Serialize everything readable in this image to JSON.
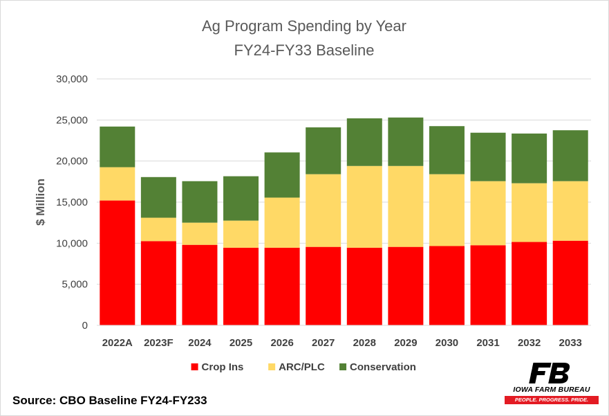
{
  "chart_data": {
    "type": "bar",
    "stacked": true,
    "title": [
      "Ag Program Spending by Year",
      "FY24-FY33 Baseline"
    ],
    "ylabel": "$ Million",
    "xlabel": "",
    "ylim": [
      0,
      30000
    ],
    "yticks": [
      0,
      5000,
      10000,
      15000,
      20000,
      25000,
      30000
    ],
    "ytick_labels": [
      "0",
      "5,000",
      "10,000",
      "15,000",
      "20,000",
      "25,000",
      "30,000"
    ],
    "grid": true,
    "legend_position": "bottom",
    "categories": [
      "2022A",
      "2023F",
      "2024",
      "2025",
      "2026",
      "2027",
      "2028",
      "2029",
      "2030",
      "2031",
      "2032",
      "2033"
    ],
    "series": [
      {
        "name": "Crop Ins",
        "color": "#ff0000",
        "values": [
          15200,
          10250,
          9800,
          9450,
          9450,
          9550,
          9450,
          9550,
          9650,
          9750,
          10150,
          10300
        ]
      },
      {
        "name": "ARC/PLC",
        "color": "#ffd966",
        "values": [
          4050,
          2850,
          2700,
          3300,
          6100,
          8850,
          9950,
          9850,
          8750,
          7800,
          7150,
          7250
        ]
      },
      {
        "name": "Conservation",
        "color": "#538135",
        "values": [
          4950,
          4950,
          5050,
          5400,
          5500,
          5700,
          5800,
          5900,
          5850,
          5900,
          6050,
          6200
        ]
      }
    ]
  },
  "source": "Source: CBO Baseline FY24-FY233",
  "logo": {
    "name": "IOWA FARM BUREAU",
    "tagline": "PEOPLE. PROGRESS. PRIDE.",
    "mark_color": "#000000",
    "tag_color": "#e31b23",
    "icon": "farm-bureau-fb-mark-icon"
  }
}
